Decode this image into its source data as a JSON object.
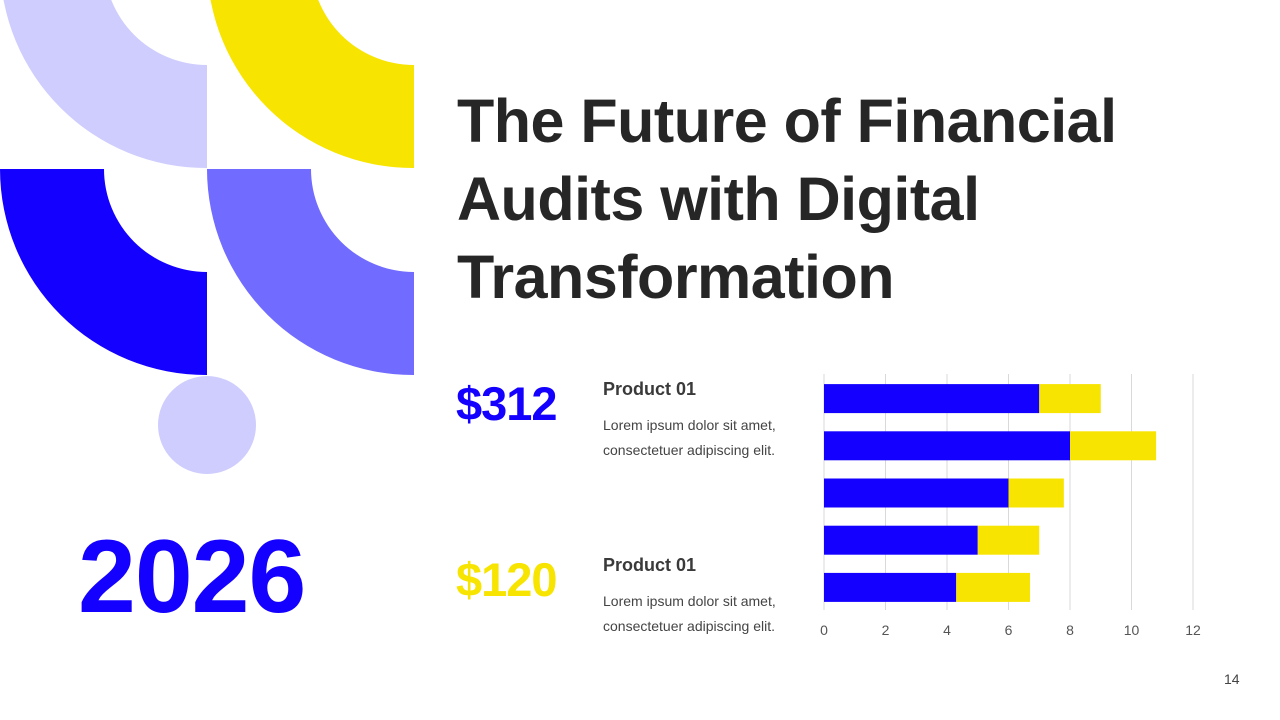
{
  "title": "The Future of Financial Audits with Digital Transformation",
  "year": "2026",
  "stats": [
    {
      "price": "$312",
      "product": "Product 01",
      "description": "Lorem ipsum dolor sit amet, consectetuer adipiscing elit.",
      "color": "#1400ff"
    },
    {
      "price": "$120",
      "product": "Product 01",
      "description": "Lorem ipsum dolor sit amet, consectetuer adipiscing elit.",
      "color": "#f7e400"
    }
  ],
  "page_number": "14",
  "colors": {
    "blue": "#1400ff",
    "yellow": "#f7e400",
    "lavender": "#cfcdfd",
    "purple": "#716bff",
    "text": "#262626"
  },
  "chart_data": {
    "type": "bar",
    "orientation": "horizontal",
    "stacked": true,
    "categories": [
      "",
      "",
      "",
      "",
      ""
    ],
    "series": [
      {
        "color": "#1400ff",
        "values": [
          7,
          8,
          6,
          5,
          4.3
        ]
      },
      {
        "color": "#f7e400",
        "values": [
          2,
          2.8,
          1.8,
          2,
          2.4
        ]
      }
    ],
    "xlim": [
      0,
      12
    ],
    "xticks": [
      "0",
      "2",
      "4",
      "6",
      "8",
      "10",
      "12"
    ],
    "grid": true,
    "legend": "none"
  }
}
